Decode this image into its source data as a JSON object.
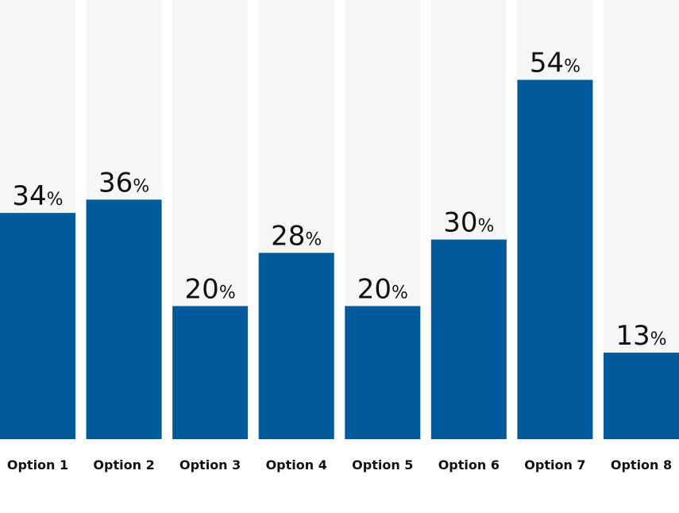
{
  "chart_data": {
    "type": "bar",
    "categories": [
      "Option 1",
      "Option 2",
      "Option 3",
      "Option 4",
      "Option 5",
      "Option 6",
      "Option 7",
      "Option 8"
    ],
    "values": [
      34,
      36,
      20,
      28,
      20,
      30,
      54,
      13
    ],
    "value_labels": [
      "34%",
      "36%",
      "20%",
      "28%",
      "20%",
      "30%",
      "54%",
      "13%"
    ],
    "color": "#005a9c",
    "ylim": [
      0,
      66
    ]
  }
}
